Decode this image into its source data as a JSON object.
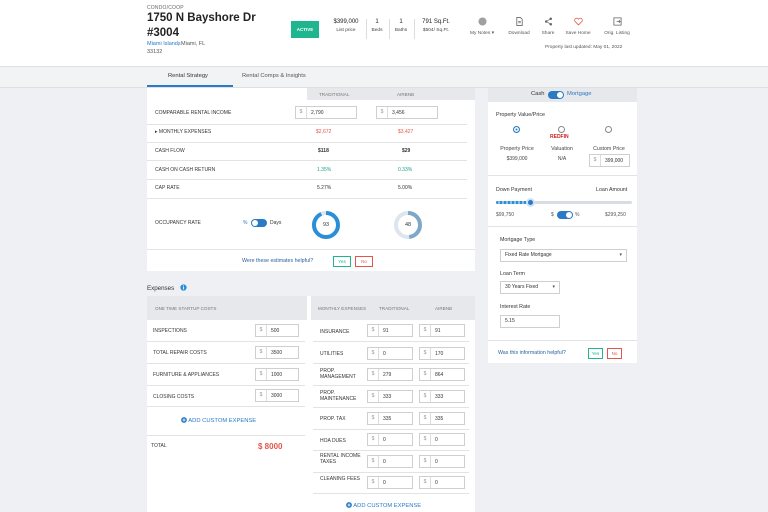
{
  "listing": {
    "property_type": "CONDO/COOP",
    "address_line1": "1750 N Bayshore Dr",
    "address_line2": "#3004",
    "neighborhood": "Miami Islands",
    "city": ", Miami, FL",
    "zip": "33132",
    "status": "ACTIVE",
    "stats": [
      {
        "value": "$399,000",
        "label": "List price"
      },
      {
        "value": "1",
        "label": "Beds"
      },
      {
        "value": "1",
        "label": "Baths"
      },
      {
        "value": "791 Sq.Ft.",
        "label": "$504/ Sq.Ft."
      }
    ],
    "updated": "Property last updated: May 01, 2022"
  },
  "toolbar": {
    "notes": "My Notes",
    "download": "Download",
    "share": "Share",
    "save": "Save Home",
    "orig": "Orig. Listing"
  },
  "tabs": [
    "Rental Strategy",
    "Rental Comps & Insights"
  ],
  "strategy": {
    "col_traditional": "TRADITIONAL",
    "col_airbnb": "AIRBNB",
    "comparable_label": "COMPARABLE RENTAL INCOME",
    "comparable_traditional": "2,790",
    "comparable_airbnb": "3,456",
    "monthly_expenses_label": "MONTHLY EXPENSES",
    "monthly_expenses_traditional": "$2,672",
    "monthly_expenses_airbnb": "$3,427",
    "cash_flow_label": "CASH FLOW",
    "cash_flow_traditional": "$118",
    "cash_flow_airbnb": "$29",
    "coc_label": "CASH ON CASH RETURN",
    "coc_traditional": "1.35%",
    "coc_airbnb": "0.33%",
    "cap_label": "CAP RATE",
    "cap_traditional": "5.27%",
    "cap_airbnb": "5.00%",
    "occupancy_label": "OCCUPANCY RATE",
    "occ_pct": "%",
    "occ_days": "Days",
    "occ_traditional": "93",
    "occ_airbnb": "48",
    "occ_traditional_fraction": 0.93,
    "occ_airbnb_fraction": 0.48,
    "helpful_q": "Were these estimates helpful?",
    "yes": "Yes",
    "no": "No"
  },
  "expenses": {
    "title": "Expenses",
    "onetime_head": "ONE TIME STARTUP COSTS",
    "onetime": [
      {
        "label": "INSPECTIONS",
        "value": "500"
      },
      {
        "label": "TOTAL REPAIR COSTS",
        "value": "3500"
      },
      {
        "label": "FURNITURE & APPLIANCES",
        "value": "1000"
      },
      {
        "label": "CLOSING COSTS",
        "value": "3000"
      }
    ],
    "add_custom": "ADD CUSTOM EXPENSE",
    "total_label": "TOTAL",
    "total_value": "$ 8000",
    "monthly_head": "MONTHLY EXPENSES",
    "monthly_col_traditional": "TRADITIONAL",
    "monthly_col_airbnb": "AIRBNB",
    "monthly": [
      {
        "label": "INSURANCE",
        "traditional": "91",
        "airbnb": "91"
      },
      {
        "label": "UTILITIES",
        "traditional": "0",
        "airbnb": "170"
      },
      {
        "label": "PROP. MANAGEMENT",
        "traditional": "279",
        "airbnb": "864"
      },
      {
        "label": "PROP. MAINTENANCE",
        "traditional": "333",
        "airbnb": "333"
      },
      {
        "label": "PROP. TAX",
        "traditional": "335",
        "airbnb": "335"
      },
      {
        "label": "HOA DUES",
        "traditional": "0",
        "airbnb": "0"
      },
      {
        "label": "RENTAL INCOME TAXES",
        "traditional": "0",
        "airbnb": "0"
      },
      {
        "label": "CLEANING FEES",
        "traditional": "0",
        "airbnb": "0"
      }
    ],
    "add_custom_monthly": "ADD CUSTOM EXPENSE"
  },
  "financing": {
    "cash": "Cash",
    "mortgage": "Mortgage",
    "property_value_label": "Property Value/Price",
    "opt_property": "Property Price",
    "opt_property_value": "$399,000",
    "opt_redfin": "REDFIN",
    "opt_valuation": "Valuation",
    "opt_valuation_value": "N/A",
    "opt_custom": "Custom Price",
    "opt_custom_value": "399,000",
    "down_payment_label": "Down Payment",
    "loan_amount_label": "Loan Amount",
    "down_payment_value": "$99,750",
    "down_payment_fraction": 0.25,
    "dollar": "$",
    "pct": "%",
    "loan_amount_value": "$299,250",
    "mortgage_type_label": "Mortgage Type",
    "mortgage_type_value": "Fixed Rate Mortgage",
    "loan_term_label": "Loan Term",
    "loan_term_value": "30 Years Fixed",
    "interest_label": "Interest Rate",
    "interest_value": "5.15",
    "helpful_q": "Was this information helpful?",
    "yes": "Yes",
    "no": "No"
  },
  "colors": {
    "accent": "#2a7ac4",
    "active": "#1fb58f",
    "negative": "#e4554a",
    "positive": "#1fa08f"
  }
}
